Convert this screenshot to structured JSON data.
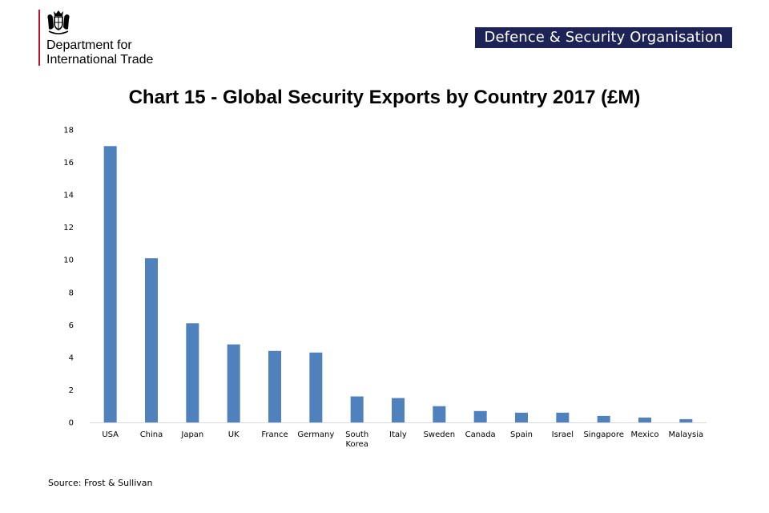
{
  "header": {
    "department_line1": "Department for",
    "department_line2": "International Trade",
    "badge": "Defence & Security Organisation",
    "logo_icon": "royal-crest-icon"
  },
  "colors": {
    "bar": "#4f81bd",
    "badge_bg": "#1d2257",
    "logo_rule": "#c8102e"
  },
  "source": "Source: Frost & Sullivan",
  "chart_data": {
    "type": "bar",
    "title": "Chart 15 - Global Security Exports by Country 2017 (£M)",
    "xlabel": "",
    "ylabel": "",
    "categories": [
      "USA",
      "China",
      "Japan",
      "UK",
      "France",
      "Germany",
      "South Korea",
      "Italy",
      "Sweden",
      "Canada",
      "Spain",
      "Israel",
      "Singapore",
      "Mexico",
      "Malaysia"
    ],
    "values": [
      17,
      10.1,
      6.1,
      4.8,
      4.4,
      4.3,
      1.6,
      1.5,
      1.0,
      0.7,
      0.6,
      0.6,
      0.4,
      0.3,
      0.2
    ],
    "ylim": [
      0,
      18
    ],
    "yticks": [
      "0",
      "2",
      "4",
      "6",
      "8",
      "10",
      "12",
      "14",
      "16",
      "18"
    ],
    "grid": false,
    "legend": "none"
  }
}
